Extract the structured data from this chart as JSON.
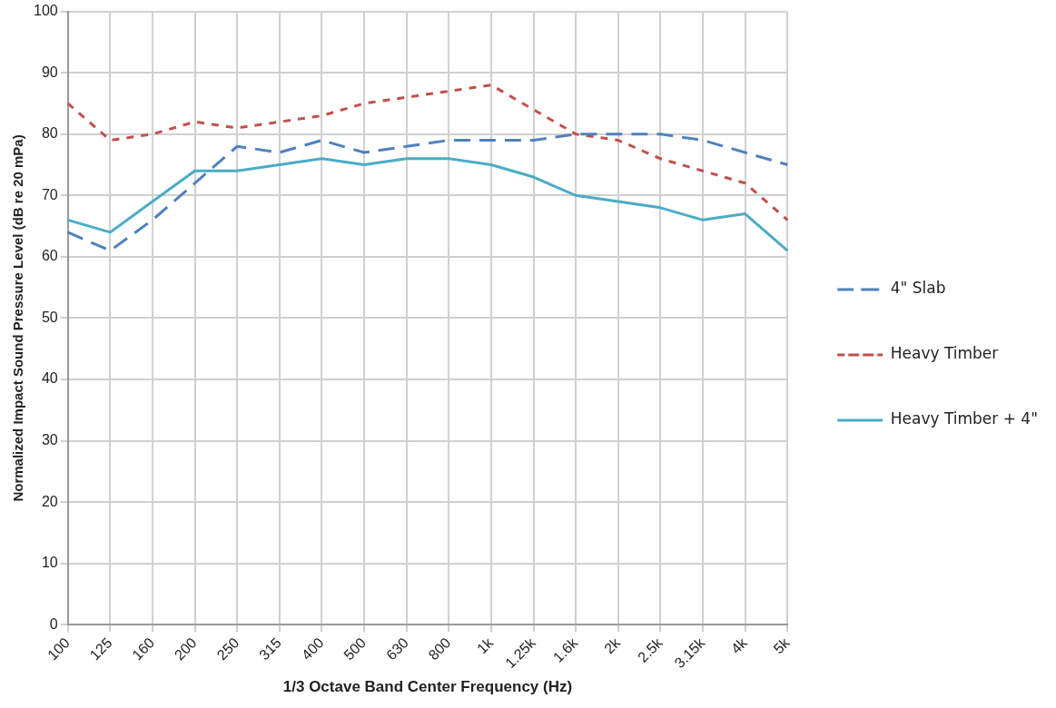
{
  "chart_data": {
    "type": "line",
    "xlabel": "1/3 Octave Band Center Frequency (Hz)",
    "ylabel": "Normalized Impact Sound Pressure Level (dB re 20 mPa)",
    "categories": [
      "100",
      "125",
      "160",
      "200",
      "250",
      "315",
      "400",
      "500",
      "630",
      "800",
      "1k",
      "1.25k",
      "1.6k",
      "2k",
      "2.5k",
      "3.15k",
      "4k",
      "5k"
    ],
    "ylim": [
      0,
      100
    ],
    "yticks": [
      0,
      10,
      20,
      30,
      40,
      50,
      60,
      70,
      80,
      90,
      100
    ],
    "grid": true,
    "legend": "right",
    "marker": "none",
    "series": [
      {
        "name": "4\" Slab",
        "color": "#4f81bd",
        "line_style": "dashed",
        "values": [
          64,
          61,
          66,
          72,
          78,
          77,
          79,
          77,
          78,
          79,
          79,
          79,
          80,
          80,
          80,
          79,
          77,
          75
        ]
      },
      {
        "name": "Heavy Timber",
        "color": "#c0504d",
        "line_style": "dotted",
        "values": [
          85,
          79,
          80,
          82,
          81,
          82,
          83,
          85,
          86,
          87,
          88,
          84,
          80,
          79,
          76,
          74,
          72,
          66
        ]
      },
      {
        "name": "Heavy Timber + 4\"",
        "color": "#4bacc6",
        "line_style": "solid",
        "values": [
          66,
          64,
          69,
          74,
          74,
          75,
          76,
          75,
          76,
          76,
          75,
          73,
          70,
          69,
          68,
          66,
          67,
          61
        ]
      }
    ]
  }
}
